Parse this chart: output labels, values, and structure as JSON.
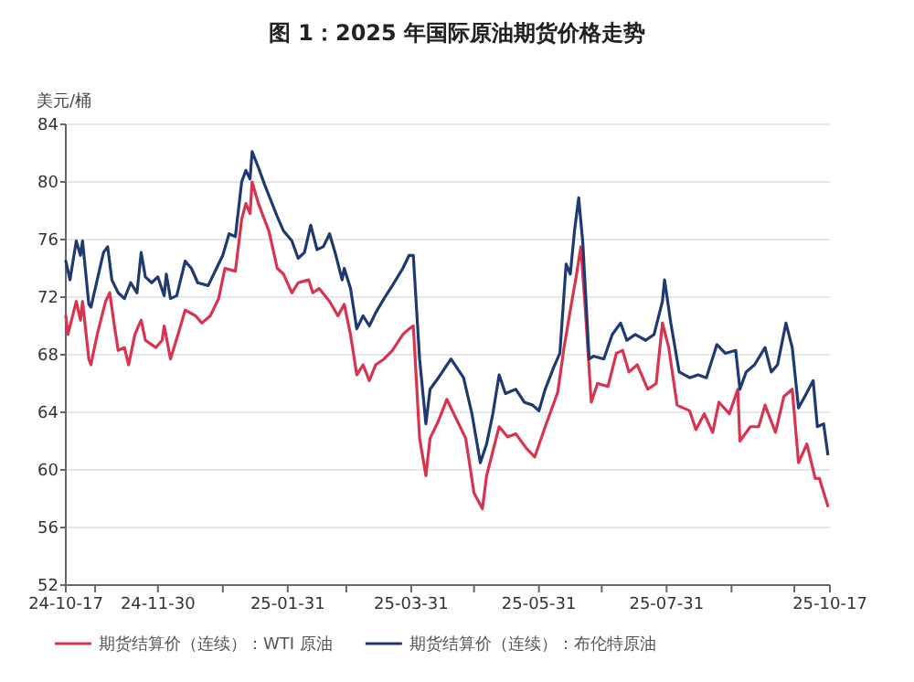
{
  "chart_data": {
    "type": "line",
    "title": "图 1：2025 年国际原油期货价格走势",
    "ylabel": "美元/桶",
    "xlim": [
      "2024-10-17",
      "2025-10-17"
    ],
    "ylim": [
      52,
      84
    ],
    "yticks": [
      52,
      56,
      60,
      64,
      68,
      72,
      76,
      80,
      84
    ],
    "xticks": [
      {
        "value": "2024-10-17",
        "label": "24-10-17"
      },
      {
        "value": "2024-10-31",
        "label": null
      },
      {
        "value": "2024-11-30",
        "label": "24-11-30"
      },
      {
        "value": "2024-12-31",
        "label": null
      },
      {
        "value": "2025-01-31",
        "label": "25-01-31"
      },
      {
        "value": "2025-02-28",
        "label": null
      },
      {
        "value": "2025-03-31",
        "label": "25-03-31"
      },
      {
        "value": "2025-04-30",
        "label": null
      },
      {
        "value": "2025-05-31",
        "label": "25-05-31"
      },
      {
        "value": "2025-06-30",
        "label": null
      },
      {
        "value": "2025-07-31",
        "label": "25-07-31"
      },
      {
        "value": "2025-08-31",
        "label": null
      },
      {
        "value": "2025-09-30",
        "label": null
      },
      {
        "value": "2025-10-17",
        "label": "25-10-17"
      }
    ],
    "grid": "y",
    "legend": "bottom",
    "series": [
      {
        "name": "期货结算价（连续）：WTI 原油",
        "color": "#d9344f",
        "x": [
          "2024-10-17",
          "2024-10-18",
          "2024-10-22",
          "2024-10-24",
          "2024-10-25",
          "2024-10-28",
          "2024-10-29",
          "2024-11-01",
          "2024-11-05",
          "2024-11-07",
          "2024-11-09",
          "2024-11-11",
          "2024-11-14",
          "2024-11-16",
          "2024-11-19",
          "2024-11-22",
          "2024-11-24",
          "2024-11-29",
          "2024-12-02",
          "2024-12-03",
          "2024-12-06",
          "2024-12-10",
          "2024-12-13",
          "2024-12-18",
          "2024-12-21",
          "2024-12-25",
          "2024-12-29",
          "2025-01-01",
          "2025-01-06",
          "2025-01-09",
          "2025-01-11",
          "2025-01-13",
          "2025-01-14",
          "2025-01-17",
          "2025-01-22",
          "2025-01-26",
          "2025-01-29",
          "2025-02-02",
          "2025-02-05",
          "2025-02-10",
          "2025-02-12",
          "2025-02-15",
          "2025-02-20",
          "2025-02-24",
          "2025-02-27",
          "2025-03-02",
          "2025-03-05",
          "2025-03-08",
          "2025-03-11",
          "2025-03-14",
          "2025-03-18",
          "2025-03-22",
          "2025-03-27",
          "2025-03-30",
          "2025-04-01",
          "2025-04-04",
          "2025-04-07",
          "2025-04-09",
          "2025-04-13",
          "2025-04-17",
          "2025-04-21",
          "2025-04-26",
          "2025-04-30",
          "2025-05-04",
          "2025-05-06",
          "2025-05-09",
          "2025-05-12",
          "2025-05-16",
          "2025-05-20",
          "2025-05-25",
          "2025-05-29",
          "2025-06-03",
          "2025-06-09",
          "2025-06-12",
          "2025-06-15",
          "2025-06-18",
          "2025-06-20",
          "2025-06-22",
          "2025-06-25",
          "2025-06-28",
          "2025-07-03",
          "2025-07-07",
          "2025-07-10",
          "2025-07-13",
          "2025-07-17",
          "2025-07-22",
          "2025-07-26",
          "2025-07-29",
          "2025-08-01",
          "2025-08-05",
          "2025-08-11",
          "2025-08-14",
          "2025-08-18",
          "2025-08-22",
          "2025-08-25",
          "2025-08-30",
          "2025-09-03",
          "2025-09-04",
          "2025-09-09",
          "2025-09-13",
          "2025-09-16",
          "2025-09-21",
          "2025-09-25",
          "2025-09-29",
          "2025-10-02",
          "2025-10-06",
          "2025-10-10",
          "2025-10-12",
          "2025-10-16"
        ],
        "values": [
          70.7,
          69.4,
          71.7,
          70.4,
          71.7,
          67.7,
          67.3,
          69.4,
          71.7,
          72.3,
          70.2,
          68.3,
          68.5,
          67.3,
          69.4,
          70.4,
          69.0,
          68.5,
          69.0,
          70.0,
          67.7,
          69.6,
          71.1,
          70.7,
          70.2,
          70.7,
          71.9,
          74.0,
          73.8,
          77.4,
          78.5,
          77.8,
          80.0,
          78.5,
          76.6,
          74.0,
          73.6,
          72.3,
          73.0,
          73.2,
          72.3,
          72.6,
          71.7,
          70.7,
          71.5,
          69.4,
          66.6,
          67.3,
          66.2,
          67.3,
          67.7,
          68.3,
          69.4,
          69.8,
          70.0,
          62.2,
          59.6,
          62.2,
          63.4,
          64.9,
          63.7,
          62.2,
          58.4,
          57.3,
          59.6,
          61.3,
          63.0,
          62.3,
          62.5,
          61.5,
          60.9,
          63.0,
          65.4,
          68.5,
          71.1,
          73.6,
          75.5,
          71.5,
          64.7,
          66.0,
          65.8,
          68.1,
          68.3,
          66.8,
          67.3,
          65.6,
          66.0,
          70.2,
          68.5,
          64.5,
          64.1,
          62.8,
          63.9,
          62.6,
          64.7,
          63.9,
          65.6,
          62.0,
          63.0,
          63.0,
          64.5,
          62.6,
          65.1,
          65.6,
          60.5,
          61.8,
          59.4,
          59.4,
          57.5
        ]
      },
      {
        "name": "期货结算价（连续）：布伦特原油",
        "color": "#1f3a70",
        "x": [
          "2024-10-17",
          "2024-10-19",
          "2024-10-22",
          "2024-10-24",
          "2024-10-25",
          "2024-10-28",
          "2024-10-29",
          "2024-11-01",
          "2024-11-04",
          "2024-11-06",
          "2024-11-08",
          "2024-11-11",
          "2024-11-14",
          "2024-11-17",
          "2024-11-20",
          "2024-11-22",
          "2024-11-24",
          "2024-11-27",
          "2024-11-30",
          "2024-12-03",
          "2024-12-04",
          "2024-12-06",
          "2024-12-09",
          "2024-12-13",
          "2024-12-16",
          "2024-12-19",
          "2024-12-24",
          "2024-12-28",
          "2024-12-31",
          "2025-01-03",
          "2025-01-06",
          "2025-01-09",
          "2025-01-11",
          "2025-01-13",
          "2025-01-14",
          "2025-01-17",
          "2025-01-20",
          "2025-01-23",
          "2025-01-26",
          "2025-01-29",
          "2025-02-02",
          "2025-02-05",
          "2025-02-08",
          "2025-02-11",
          "2025-02-14",
          "2025-02-17",
          "2025-02-20",
          "2025-02-23",
          "2025-02-26",
          "2025-02-27",
          "2025-03-02",
          "2025-03-05",
          "2025-03-08",
          "2025-03-11",
          "2025-03-14",
          "2025-03-18",
          "2025-03-22",
          "2025-03-27",
          "2025-03-30",
          "2025-04-01",
          "2025-04-04",
          "2025-04-06",
          "2025-04-07",
          "2025-04-09",
          "2025-04-13",
          "2025-04-19",
          "2025-04-25",
          "2025-04-29",
          "2025-05-03",
          "2025-05-06",
          "2025-05-09",
          "2025-05-12",
          "2025-05-15",
          "2025-05-20",
          "2025-05-24",
          "2025-05-28",
          "2025-05-31",
          "2025-06-03",
          "2025-06-07",
          "2025-06-10",
          "2025-06-13",
          "2025-06-15",
          "2025-06-17",
          "2025-06-19",
          "2025-06-21",
          "2025-06-24",
          "2025-06-26",
          "2025-07-01",
          "2025-07-05",
          "2025-07-09",
          "2025-07-12",
          "2025-07-16",
          "2025-07-21",
          "2025-07-25",
          "2025-07-29",
          "2025-07-30",
          "2025-08-02",
          "2025-08-06",
          "2025-08-11",
          "2025-08-15",
          "2025-08-19",
          "2025-08-24",
          "2025-08-28",
          "2025-09-02",
          "2025-09-04",
          "2025-09-07",
          "2025-09-11",
          "2025-09-16",
          "2025-09-19",
          "2025-09-22",
          "2025-09-26",
          "2025-09-29",
          "2025-10-02",
          "2025-10-05",
          "2025-10-09",
          "2025-10-11",
          "2025-10-14",
          "2025-10-16"
        ],
        "values": [
          74.5,
          73.2,
          75.9,
          74.9,
          75.9,
          71.5,
          71.3,
          73.2,
          75.1,
          75.5,
          73.2,
          72.3,
          71.9,
          73.0,
          72.3,
          75.1,
          73.4,
          73.0,
          73.4,
          72.1,
          73.6,
          71.9,
          72.1,
          74.5,
          74.0,
          73.0,
          72.8,
          74.0,
          74.9,
          76.4,
          76.2,
          80.0,
          80.8,
          80.2,
          82.1,
          81.0,
          79.8,
          78.7,
          77.6,
          76.6,
          75.9,
          74.7,
          75.1,
          77.0,
          75.3,
          75.5,
          76.4,
          74.9,
          73.2,
          74.0,
          72.6,
          69.8,
          70.7,
          70.0,
          70.9,
          71.9,
          72.8,
          74.0,
          74.9,
          74.9,
          67.7,
          64.7,
          63.2,
          65.6,
          66.4,
          67.7,
          66.4,
          63.9,
          60.5,
          61.8,
          63.9,
          66.6,
          65.3,
          65.6,
          64.7,
          64.5,
          64.1,
          65.6,
          67.1,
          68.1,
          74.3,
          73.6,
          76.6,
          78.9,
          75.7,
          67.7,
          67.9,
          67.7,
          69.4,
          70.2,
          69.0,
          69.4,
          69.0,
          69.4,
          71.7,
          73.2,
          70.2,
          66.8,
          66.4,
          66.6,
          66.4,
          68.7,
          68.1,
          68.3,
          65.6,
          66.8,
          67.3,
          68.5,
          66.8,
          67.3,
          70.2,
          68.5,
          64.3,
          65.1,
          66.2,
          63.0,
          63.2,
          61.1
        ]
      }
    ]
  }
}
